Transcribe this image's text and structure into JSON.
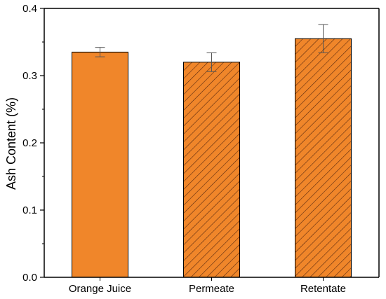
{
  "chart_data": {
    "type": "bar",
    "title": "",
    "xlabel": "",
    "ylabel": "Ash Content (%)",
    "ylim": [
      0,
      0.4
    ],
    "yticks": [
      "0.0",
      "0.1",
      "0.2",
      "0.3",
      "0.4"
    ],
    "categories": [
      "Orange Juice",
      "Permeate",
      "Retentate"
    ],
    "values": [
      0.335,
      0.32,
      0.355
    ],
    "error": [
      0.007,
      0.014,
      0.021
    ],
    "fills": [
      "solid",
      "hatched",
      "hatched"
    ],
    "grid": false,
    "legend": "none",
    "colors": {
      "bar": "#F0862A",
      "hatch": "#5a2a10",
      "axis": "#000000",
      "errorbar": "#555555"
    }
  }
}
